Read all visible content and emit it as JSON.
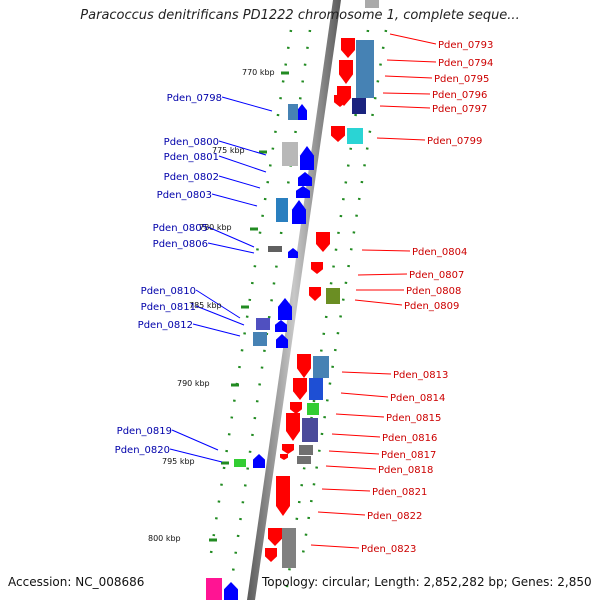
{
  "header": {
    "title": "Paracoccus denitrificans PD1222 chromosome 1, complete seque..."
  },
  "footer": {
    "accession": "Accession: NC_008686",
    "summary": "Topology: circular; Length: 2,852,282 bp; Genes: 2,850"
  },
  "colors": {
    "forward_genes": "#0000ff",
    "reverse_genes": "#ff0000",
    "forward_label": "#0000aa",
    "reverse_label": "#cc0000",
    "backbone": "#808080",
    "tick": "#228b22"
  },
  "map": {
    "kbp_marks": [
      "770 kbp",
      "775 kbp",
      "780 kbp",
      "785 kbp",
      "790 kbp",
      "795 kbp",
      "800 kbp"
    ],
    "reverse_strand_genes": [
      "Pden_0793",
      "Pden_0794",
      "Pden_0795",
      "Pden_0796",
      "Pden_0797",
      "Pden_0799",
      "Pden_0804",
      "Pden_0807",
      "Pden_0808",
      "Pden_0809",
      "Pden_0813",
      "Pden_0814",
      "Pden_0815",
      "Pden_0816",
      "Pden_0817",
      "Pden_0818",
      "Pden_0821",
      "Pden_0822",
      "Pden_0823"
    ],
    "forward_strand_genes": [
      "Pden_0798",
      "Pden_0800",
      "Pden_0801",
      "Pden_0802",
      "Pden_0803",
      "Pden_0805",
      "Pden_0806",
      "Pden_0810",
      "Pden_0811",
      "Pden_0812",
      "Pden_0819",
      "Pden_0820"
    ]
  }
}
